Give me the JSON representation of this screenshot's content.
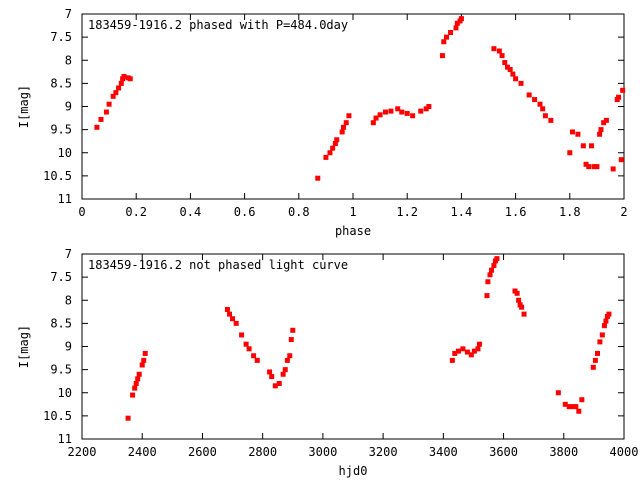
{
  "chart_data": [
    {
      "type": "scatter",
      "title": "183459-1916.2 phased with P=484.0day",
      "xlabel": "phase",
      "ylabel": "I[mag]",
      "xlim": [
        0,
        2
      ],
      "ylim": [
        11,
        7
      ],
      "y_inverted": true,
      "grid": false,
      "marker_color": "#ff0000",
      "xticks": [
        0,
        0.2,
        0.4,
        0.6,
        0.8,
        1,
        1.2,
        1.4,
        1.6,
        1.8,
        2
      ],
      "xtick_labels": [
        "0",
        "0.2",
        "0.4",
        "0.6",
        "0.8",
        "1",
        "1.2",
        "1.4",
        "1.6",
        "1.8",
        "2"
      ],
      "yticks": [
        7,
        7.5,
        8,
        8.5,
        9,
        9.5,
        10,
        10.5,
        11
      ],
      "ytick_labels": [
        "7",
        "7.5",
        "8",
        "8.5",
        "9",
        "9.5",
        "10",
        "10.5",
        "11"
      ],
      "series": [
        {
          "points": [
            [
              0.055,
              9.45
            ],
            [
              0.07,
              9.28
            ],
            [
              0.09,
              9.12
            ],
            [
              0.1,
              8.95
            ],
            [
              0.115,
              8.78
            ],
            [
              0.125,
              8.7
            ],
            [
              0.135,
              8.6
            ],
            [
              0.145,
              8.5
            ],
            [
              0.15,
              8.4
            ],
            [
              0.155,
              8.35
            ],
            [
              0.17,
              8.38
            ],
            [
              0.178,
              8.4
            ],
            [
              0.87,
              10.55
            ],
            [
              0.9,
              10.1
            ],
            [
              0.915,
              10.0
            ],
            [
              0.925,
              9.9
            ],
            [
              0.935,
              9.8
            ],
            [
              0.94,
              9.72
            ],
            [
              0.96,
              9.55
            ],
            [
              0.965,
              9.45
            ],
            [
              0.975,
              9.35
            ],
            [
              0.985,
              9.2
            ],
            [
              1.075,
              9.35
            ],
            [
              1.085,
              9.25
            ],
            [
              1.1,
              9.18
            ],
            [
              1.12,
              9.12
            ],
            [
              1.14,
              9.1
            ],
            [
              1.165,
              9.05
            ],
            [
              1.18,
              9.12
            ],
            [
              1.2,
              9.15
            ],
            [
              1.22,
              9.2
            ],
            [
              1.25,
              9.1
            ],
            [
              1.27,
              9.05
            ],
            [
              1.28,
              9.0
            ],
            [
              1.33,
              7.9
            ],
            [
              1.335,
              7.6
            ],
            [
              1.345,
              7.5
            ],
            [
              1.36,
              7.4
            ],
            [
              1.38,
              7.3
            ],
            [
              1.385,
              7.2
            ],
            [
              1.395,
              7.15
            ],
            [
              1.4,
              7.1
            ],
            [
              1.52,
              7.75
            ],
            [
              1.54,
              7.8
            ],
            [
              1.55,
              7.9
            ],
            [
              1.56,
              8.05
            ],
            [
              1.57,
              8.15
            ],
            [
              1.58,
              8.2
            ],
            [
              1.59,
              8.3
            ],
            [
              1.6,
              8.4
            ],
            [
              1.62,
              8.5
            ],
            [
              1.65,
              8.75
            ],
            [
              1.67,
              8.85
            ],
            [
              1.69,
              8.95
            ],
            [
              1.7,
              9.05
            ],
            [
              1.71,
              9.2
            ],
            [
              1.73,
              9.3
            ],
            [
              1.8,
              10.0
            ],
            [
              1.81,
              9.55
            ],
            [
              1.83,
              9.6
            ],
            [
              1.85,
              9.85
            ],
            [
              1.86,
              10.25
            ],
            [
              1.87,
              10.3
            ],
            [
              1.88,
              9.85
            ],
            [
              1.89,
              10.3
            ],
            [
              1.9,
              10.3
            ],
            [
              1.91,
              9.6
            ],
            [
              1.915,
              9.5
            ],
            [
              1.925,
              9.35
            ],
            [
              1.935,
              9.3
            ],
            [
              1.96,
              10.35
            ],
            [
              1.975,
              8.85
            ],
            [
              1.98,
              8.8
            ],
            [
              1.99,
              10.15
            ],
            [
              1.995,
              8.65
            ]
          ]
        }
      ]
    },
    {
      "type": "scatter",
      "title": "183459-1916.2 not phased light curve",
      "xlabel": "hjd0",
      "ylabel": "I[mag]",
      "xlim": [
        2200,
        4000
      ],
      "ylim": [
        11,
        7
      ],
      "y_inverted": true,
      "grid": false,
      "marker_color": "#ff0000",
      "xticks": [
        2200,
        2400,
        2600,
        2800,
        3000,
        3200,
        3400,
        3600,
        3800,
        4000
      ],
      "xtick_labels": [
        "2200",
        "2400",
        "2600",
        "2800",
        "3000",
        "3200",
        "3400",
        "3600",
        "3800",
        "4000"
      ],
      "yticks": [
        7,
        7.5,
        8,
        8.5,
        9,
        9.5,
        10,
        10.5,
        11
      ],
      "ytick_labels": [
        "7",
        "7.5",
        "8",
        "8.5",
        "9",
        "9.5",
        "10",
        "10.5",
        "11"
      ],
      "series": [
        {
          "points": [
            [
              2353,
              10.55
            ],
            [
              2368,
              10.05
            ],
            [
              2375,
              9.9
            ],
            [
              2380,
              9.8
            ],
            [
              2385,
              9.7
            ],
            [
              2390,
              9.6
            ],
            [
              2400,
              9.4
            ],
            [
              2405,
              9.3
            ],
            [
              2410,
              9.15
            ],
            [
              2683,
              8.2
            ],
            [
              2690,
              8.3
            ],
            [
              2700,
              8.4
            ],
            [
              2712,
              8.5
            ],
            [
              2730,
              8.75
            ],
            [
              2745,
              8.95
            ],
            [
              2755,
              9.05
            ],
            [
              2770,
              9.2
            ],
            [
              2782,
              9.3
            ],
            [
              2823,
              9.55
            ],
            [
              2830,
              9.65
            ],
            [
              2842,
              9.85
            ],
            [
              2855,
              9.8
            ],
            [
              2868,
              9.6
            ],
            [
              2875,
              9.5
            ],
            [
              2882,
              9.3
            ],
            [
              2890,
              9.2
            ],
            [
              2895,
              8.85
            ],
            [
              2900,
              8.65
            ],
            [
              3430,
              9.3
            ],
            [
              3438,
              9.15
            ],
            [
              3450,
              9.1
            ],
            [
              3465,
              9.05
            ],
            [
              3480,
              9.12
            ],
            [
              3493,
              9.18
            ],
            [
              3503,
              9.1
            ],
            [
              3515,
              9.05
            ],
            [
              3520,
              8.95
            ],
            [
              3545,
              7.9
            ],
            [
              3548,
              7.6
            ],
            [
              3555,
              7.45
            ],
            [
              3560,
              7.35
            ],
            [
              3568,
              7.25
            ],
            [
              3573,
              7.15
            ],
            [
              3578,
              7.1
            ],
            [
              3638,
              7.8
            ],
            [
              3645,
              7.85
            ],
            [
              3650,
              8.0
            ],
            [
              3655,
              8.1
            ],
            [
              3660,
              8.15
            ],
            [
              3668,
              8.3
            ],
            [
              3782,
              10.0
            ],
            [
              3805,
              10.25
            ],
            [
              3818,
              10.3
            ],
            [
              3830,
              10.3
            ],
            [
              3840,
              10.3
            ],
            [
              3850,
              10.4
            ],
            [
              3860,
              10.15
            ],
            [
              3898,
              9.45
            ],
            [
              3905,
              9.3
            ],
            [
              3912,
              9.15
            ],
            [
              3920,
              8.9
            ],
            [
              3928,
              8.75
            ],
            [
              3935,
              8.55
            ],
            [
              3940,
              8.45
            ],
            [
              3945,
              8.35
            ],
            [
              3950,
              8.3
            ]
          ]
        }
      ]
    }
  ]
}
